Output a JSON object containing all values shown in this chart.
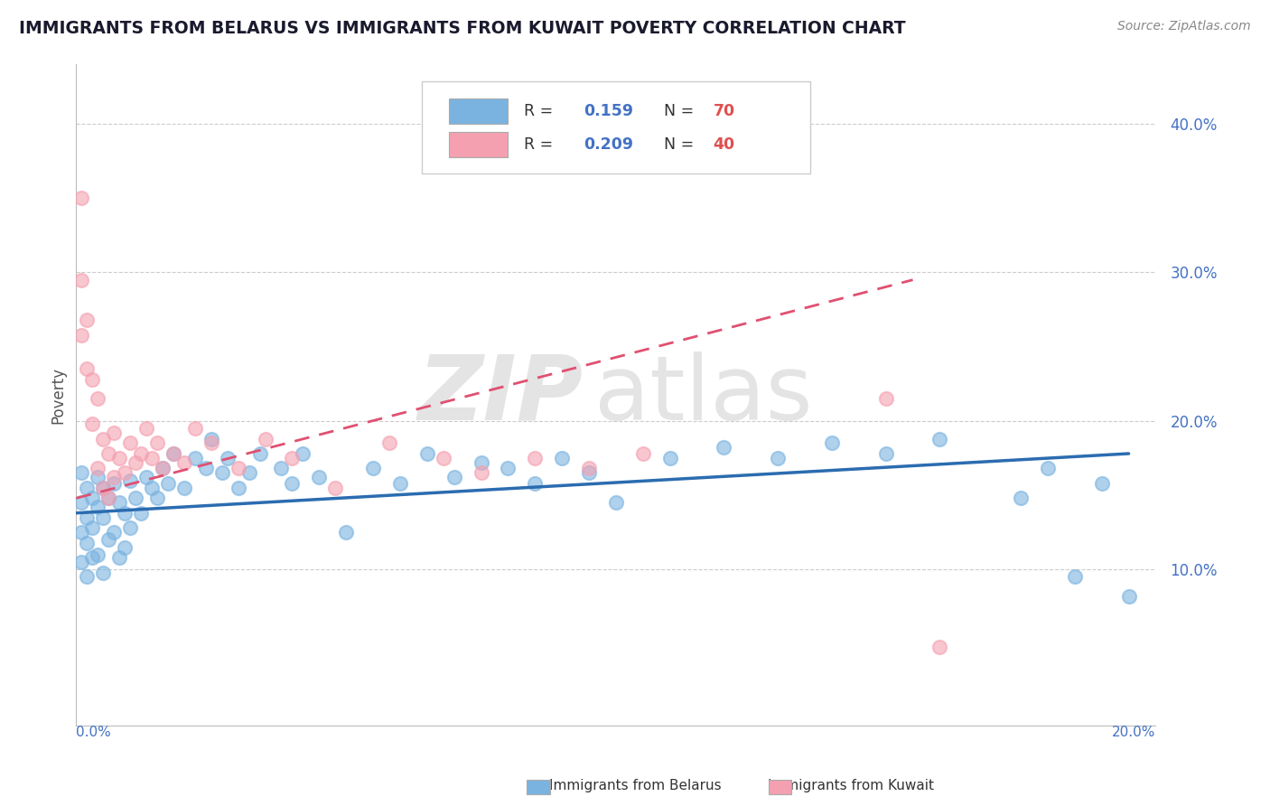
{
  "title": "IMMIGRANTS FROM BELARUS VS IMMIGRANTS FROM KUWAIT POVERTY CORRELATION CHART",
  "source": "Source: ZipAtlas.com",
  "ylabel": "Poverty",
  "y_ticks": [
    0.1,
    0.2,
    0.3,
    0.4
  ],
  "y_tick_labels": [
    "10.0%",
    "20.0%",
    "30.0%",
    "40.0%"
  ],
  "x_lim": [
    0.0,
    0.2
  ],
  "y_lim": [
    -0.005,
    0.44
  ],
  "color_belarus": "#7ab3e0",
  "color_kuwait": "#f4a0b0",
  "watermark_color": "#e0e0e0",
  "grid_color": "#cccccc",
  "tick_color": "#4472c4",
  "belarus_scatter_x": [
    0.001,
    0.001,
    0.001,
    0.001,
    0.002,
    0.002,
    0.002,
    0.002,
    0.003,
    0.003,
    0.003,
    0.004,
    0.004,
    0.004,
    0.005,
    0.005,
    0.005,
    0.006,
    0.006,
    0.007,
    0.007,
    0.008,
    0.008,
    0.009,
    0.009,
    0.01,
    0.01,
    0.011,
    0.012,
    0.013,
    0.014,
    0.015,
    0.016,
    0.017,
    0.018,
    0.02,
    0.022,
    0.024,
    0.025,
    0.027,
    0.028,
    0.03,
    0.032,
    0.034,
    0.038,
    0.04,
    0.042,
    0.045,
    0.05,
    0.055,
    0.06,
    0.065,
    0.07,
    0.075,
    0.08,
    0.085,
    0.09,
    0.095,
    0.1,
    0.11,
    0.12,
    0.13,
    0.14,
    0.15,
    0.16,
    0.175,
    0.18,
    0.185,
    0.19,
    0.195
  ],
  "belarus_scatter_y": [
    0.165,
    0.145,
    0.125,
    0.105,
    0.155,
    0.135,
    0.118,
    0.095,
    0.148,
    0.128,
    0.108,
    0.162,
    0.142,
    0.11,
    0.155,
    0.135,
    0.098,
    0.148,
    0.12,
    0.158,
    0.125,
    0.145,
    0.108,
    0.138,
    0.115,
    0.16,
    0.128,
    0.148,
    0.138,
    0.162,
    0.155,
    0.148,
    0.168,
    0.158,
    0.178,
    0.155,
    0.175,
    0.168,
    0.188,
    0.165,
    0.175,
    0.155,
    0.165,
    0.178,
    0.168,
    0.158,
    0.178,
    0.162,
    0.125,
    0.168,
    0.158,
    0.178,
    0.162,
    0.172,
    0.168,
    0.158,
    0.175,
    0.165,
    0.145,
    0.175,
    0.182,
    0.175,
    0.185,
    0.178,
    0.188,
    0.148,
    0.168,
    0.095,
    0.158,
    0.082
  ],
  "kuwait_scatter_x": [
    0.001,
    0.001,
    0.001,
    0.002,
    0.002,
    0.003,
    0.003,
    0.004,
    0.004,
    0.005,
    0.005,
    0.006,
    0.006,
    0.007,
    0.007,
    0.008,
    0.009,
    0.01,
    0.011,
    0.012,
    0.013,
    0.014,
    0.015,
    0.016,
    0.018,
    0.02,
    0.022,
    0.025,
    0.03,
    0.035,
    0.04,
    0.048,
    0.058,
    0.068,
    0.075,
    0.085,
    0.095,
    0.105,
    0.15,
    0.16
  ],
  "kuwait_scatter_y": [
    0.35,
    0.295,
    0.258,
    0.268,
    0.235,
    0.228,
    0.198,
    0.215,
    0.168,
    0.188,
    0.155,
    0.178,
    0.148,
    0.192,
    0.162,
    0.175,
    0.165,
    0.185,
    0.172,
    0.178,
    0.195,
    0.175,
    0.185,
    0.168,
    0.178,
    0.172,
    0.195,
    0.185,
    0.168,
    0.188,
    0.175,
    0.155,
    0.185,
    0.175,
    0.165,
    0.175,
    0.168,
    0.178,
    0.215,
    0.048
  ],
  "belarus_trend_x": [
    0.0,
    0.195
  ],
  "belarus_trend_y": [
    0.138,
    0.178
  ],
  "kuwait_trend_x": [
    0.0,
    0.155
  ],
  "kuwait_trend_y": [
    0.148,
    0.295
  ]
}
